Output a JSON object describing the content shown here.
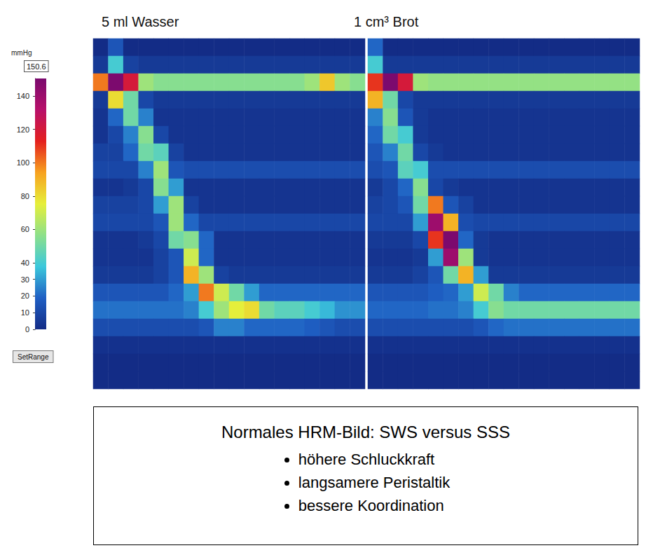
{
  "chart_data": {
    "type": "heatmap",
    "tick_labels": false,
    "grid": false,
    "panels": [
      {
        "title": "5 ml Wasser",
        "cells": [
          [
            0,
            15,
            0,
            0,
            0,
            0,
            0,
            0,
            0,
            0,
            0,
            0,
            0,
            0,
            0,
            0,
            0,
            0
          ],
          [
            5,
            40,
            8,
            5,
            5,
            5,
            5,
            5,
            5,
            5,
            5,
            5,
            5,
            5,
            5,
            5,
            5,
            5
          ],
          [
            100,
            150,
            120,
            60,
            55,
            55,
            55,
            55,
            55,
            55,
            55,
            55,
            55,
            55,
            60,
            85,
            60,
            55
          ],
          [
            5,
            80,
            50,
            10,
            5,
            5,
            5,
            5,
            5,
            5,
            5,
            5,
            5,
            5,
            5,
            5,
            5,
            5
          ],
          [
            3,
            20,
            50,
            25,
            3,
            3,
            3,
            3,
            3,
            3,
            3,
            3,
            3,
            3,
            3,
            3,
            3,
            3
          ],
          [
            3,
            10,
            25,
            55,
            10,
            3,
            3,
            3,
            3,
            3,
            3,
            3,
            3,
            3,
            3,
            3,
            3,
            3
          ],
          [
            8,
            8,
            20,
            50,
            45,
            8,
            3,
            3,
            3,
            3,
            3,
            3,
            3,
            3,
            3,
            3,
            3,
            3
          ],
          [
            10,
            10,
            10,
            25,
            60,
            15,
            12,
            12,
            12,
            12,
            12,
            12,
            12,
            12,
            12,
            12,
            12,
            12
          ],
          [
            3,
            3,
            5,
            10,
            55,
            30,
            3,
            3,
            3,
            3,
            3,
            3,
            3,
            3,
            3,
            3,
            3,
            3
          ],
          [
            8,
            8,
            8,
            10,
            30,
            60,
            8,
            3,
            3,
            3,
            3,
            3,
            3,
            3,
            3,
            3,
            3,
            3
          ],
          [
            10,
            10,
            10,
            10,
            15,
            60,
            20,
            10,
            10,
            10,
            10,
            10,
            10,
            10,
            10,
            10,
            10,
            10
          ],
          [
            3,
            3,
            3,
            5,
            10,
            50,
            55,
            20,
            3,
            3,
            3,
            3,
            3,
            3,
            3,
            3,
            3,
            3
          ],
          [
            3,
            3,
            3,
            3,
            8,
            15,
            70,
            20,
            3,
            3,
            3,
            3,
            3,
            3,
            3,
            3,
            3,
            3
          ],
          [
            5,
            5,
            5,
            5,
            8,
            15,
            90,
            60,
            8,
            5,
            5,
            5,
            5,
            5,
            5,
            5,
            5,
            5
          ],
          [
            15,
            15,
            15,
            15,
            15,
            20,
            30,
            100,
            70,
            50,
            30,
            20,
            20,
            20,
            20,
            20,
            20,
            20
          ],
          [
            22,
            22,
            22,
            22,
            22,
            22,
            25,
            40,
            60,
            75,
            80,
            50,
            45,
            45,
            40,
            35,
            28,
            28
          ],
          [
            12,
            12,
            12,
            12,
            12,
            12,
            12,
            15,
            25,
            25,
            20,
            20,
            20,
            20,
            18,
            15,
            12,
            12
          ],
          [
            2,
            2,
            2,
            2,
            2,
            2,
            2,
            2,
            2,
            2,
            2,
            2,
            2,
            2,
            2,
            2,
            2,
            2
          ],
          [
            0,
            0,
            0,
            0,
            0,
            0,
            0,
            0,
            0,
            0,
            0,
            0,
            0,
            0,
            0,
            0,
            0,
            0
          ],
          [
            0,
            0,
            0,
            0,
            0,
            0,
            0,
            0,
            0,
            0,
            0,
            0,
            0,
            0,
            0,
            0,
            0,
            0
          ]
        ]
      },
      {
        "title": "1 cm³ Brot",
        "cells": [
          [
            20,
            0,
            0,
            0,
            0,
            0,
            0,
            0,
            0,
            0,
            0,
            0,
            0,
            0,
            0,
            0,
            0,
            0
          ],
          [
            40,
            5,
            5,
            5,
            5,
            5,
            5,
            5,
            5,
            5,
            5,
            5,
            5,
            5,
            5,
            5,
            5,
            5
          ],
          [
            110,
            150,
            120,
            60,
            58,
            58,
            58,
            58,
            58,
            58,
            58,
            58,
            58,
            58,
            58,
            58,
            58,
            58
          ],
          [
            90,
            50,
            10,
            5,
            5,
            5,
            5,
            5,
            5,
            5,
            5,
            5,
            5,
            5,
            5,
            5,
            5,
            5
          ],
          [
            25,
            55,
            15,
            5,
            3,
            3,
            3,
            3,
            3,
            3,
            3,
            3,
            3,
            3,
            3,
            3,
            3,
            3
          ],
          [
            20,
            50,
            40,
            5,
            3,
            3,
            3,
            3,
            3,
            3,
            3,
            3,
            3,
            3,
            3,
            3,
            3,
            3
          ],
          [
            15,
            25,
            50,
            10,
            5,
            3,
            3,
            3,
            3,
            3,
            3,
            3,
            3,
            3,
            3,
            3,
            3,
            3
          ],
          [
            12,
            15,
            45,
            40,
            12,
            12,
            12,
            12,
            12,
            12,
            12,
            12,
            12,
            12,
            12,
            12,
            12,
            12
          ],
          [
            5,
            10,
            20,
            55,
            10,
            5,
            3,
            3,
            3,
            3,
            3,
            3,
            3,
            3,
            3,
            3,
            3,
            3
          ],
          [
            8,
            10,
            15,
            50,
            100,
            15,
            8,
            3,
            3,
            3,
            3,
            3,
            3,
            3,
            3,
            3,
            3,
            3
          ],
          [
            10,
            10,
            10,
            30,
            140,
            90,
            12,
            10,
            10,
            10,
            10,
            10,
            10,
            10,
            10,
            10,
            10,
            10
          ],
          [
            5,
            5,
            5,
            10,
            110,
            150,
            20,
            5,
            3,
            3,
            3,
            3,
            3,
            3,
            3,
            3,
            3,
            3
          ],
          [
            3,
            3,
            3,
            5,
            30,
            140,
            60,
            5,
            3,
            3,
            3,
            3,
            3,
            3,
            3,
            3,
            3,
            3
          ],
          [
            5,
            5,
            5,
            8,
            15,
            50,
            90,
            30,
            5,
            5,
            5,
            5,
            5,
            5,
            5,
            5,
            5,
            5
          ],
          [
            15,
            15,
            15,
            15,
            18,
            20,
            30,
            70,
            50,
            25,
            20,
            20,
            20,
            20,
            20,
            20,
            20,
            20
          ],
          [
            20,
            20,
            20,
            20,
            22,
            22,
            25,
            40,
            55,
            50,
            50,
            50,
            50,
            50,
            50,
            50,
            50,
            50
          ],
          [
            12,
            12,
            12,
            12,
            12,
            12,
            12,
            15,
            20,
            22,
            22,
            22,
            22,
            22,
            22,
            22,
            22,
            22
          ],
          [
            2,
            2,
            2,
            2,
            2,
            2,
            2,
            2,
            2,
            2,
            2,
            2,
            2,
            2,
            2,
            2,
            2,
            2
          ],
          [
            0,
            0,
            0,
            0,
            0,
            0,
            0,
            0,
            0,
            0,
            0,
            0,
            0,
            0,
            0,
            0,
            0,
            0
          ],
          [
            0,
            0,
            0,
            0,
            0,
            0,
            0,
            0,
            0,
            0,
            0,
            0,
            0,
            0,
            0,
            0,
            0,
            0
          ]
        ]
      }
    ],
    "colorbar": {
      "title": "mmHg",
      "range": [
        0,
        150.6
      ],
      "ticks": [
        0,
        10,
        20,
        30,
        40,
        60,
        80,
        100,
        120,
        140
      ],
      "button": "SetRange"
    }
  },
  "caption": {
    "title": "Normales HRM-Bild: SWS versus SSS",
    "bullets": [
      "höhere Schluckkraft",
      "langsamere Peristaltik",
      "bessere Koordination"
    ]
  }
}
